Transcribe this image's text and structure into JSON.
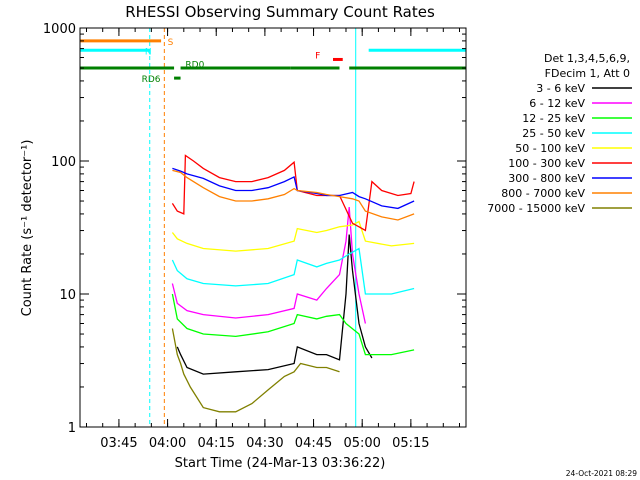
{
  "chart_data": {
    "type": "line",
    "title": "RHESSI Observing Summary Count Rates",
    "ylabel": "Count Rate (s⁻¹ detector⁻¹)",
    "xlabel": "Start Time (24-Mar-13 03:36:22)",
    "yscale": "log",
    "ylim": [
      1,
      1000
    ],
    "xlim_minutes": [
      -18,
      101
    ],
    "time_origin": "03:54",
    "yticks": [
      {
        "value": 1,
        "label": "1"
      },
      {
        "value": 10,
        "label": "10"
      },
      {
        "value": 100,
        "label": "100"
      },
      {
        "value": 1000,
        "label": "1000"
      }
    ],
    "xticks": [
      {
        "t": -6,
        "label": "03:45"
      },
      {
        "t": 9,
        "label": "04:00"
      },
      {
        "t": 24,
        "label": "04:15"
      },
      {
        "t": 39,
        "label": "04:30"
      },
      {
        "t": 54,
        "label": "04:45"
      },
      {
        "t": 69,
        "label": "05:00"
      },
      {
        "t": 84,
        "label": "05:15"
      }
    ],
    "legend_header": [
      "Det 1,3,4,5,6,9,",
      "FDecim 1, Att 0"
    ],
    "legend_position": "right",
    "series": [
      {
        "name": "3 - 6 keV",
        "color": "#000000",
        "values": [
          [
            12,
            4
          ],
          [
            13,
            3.5
          ],
          [
            15,
            2.8
          ],
          [
            20,
            2.5
          ],
          [
            30,
            2.6
          ],
          [
            40,
            2.7
          ],
          [
            48,
            3
          ],
          [
            49,
            4
          ],
          [
            55,
            3.5
          ],
          [
            58,
            3.5
          ],
          [
            62,
            3.2
          ],
          [
            64,
            10
          ],
          [
            65,
            28
          ],
          [
            66,
            15
          ],
          [
            68,
            6
          ],
          [
            70,
            4
          ],
          [
            72,
            3.3
          ]
        ]
      },
      {
        "name": "6 - 12 keV",
        "color": "#ff00ff",
        "values": [
          [
            10.5,
            12
          ],
          [
            12,
            8.5
          ],
          [
            15,
            7.5
          ],
          [
            20,
            7
          ],
          [
            30,
            6.6
          ],
          [
            40,
            7
          ],
          [
            48,
            7.8
          ],
          [
            49,
            10
          ],
          [
            55,
            9
          ],
          [
            58,
            11
          ],
          [
            62,
            14
          ],
          [
            64,
            25
          ],
          [
            65,
            45
          ],
          [
            66,
            20
          ],
          [
            68,
            10
          ],
          [
            70,
            6
          ]
        ]
      },
      {
        "name": "12 - 25 keV",
        "color": "#00ff00",
        "values": [
          [
            10.5,
            10
          ],
          [
            12,
            6.5
          ],
          [
            15,
            5.5
          ],
          [
            20,
            5
          ],
          [
            30,
            4.8
          ],
          [
            40,
            5.2
          ],
          [
            48,
            6
          ],
          [
            49,
            7
          ],
          [
            55,
            6.5
          ],
          [
            58,
            6.8
          ],
          [
            62,
            7
          ],
          [
            64,
            6
          ],
          [
            68,
            5
          ],
          [
            70,
            3.5
          ],
          [
            78,
            3.5
          ],
          [
            85,
            3.8
          ]
        ]
      },
      {
        "name": "25 - 50 keV",
        "color": "#00ffff",
        "values": [
          [
            10.5,
            18
          ],
          [
            12,
            15
          ],
          [
            15,
            13
          ],
          [
            20,
            12
          ],
          [
            30,
            11.5
          ],
          [
            40,
            12
          ],
          [
            48,
            14
          ],
          [
            49,
            18
          ],
          [
            55,
            16
          ],
          [
            58,
            17
          ],
          [
            62,
            18
          ],
          [
            65,
            20
          ],
          [
            68,
            22
          ],
          [
            70,
            10
          ],
          [
            78,
            10
          ],
          [
            85,
            11
          ]
        ]
      },
      {
        "name": "50 - 100 keV",
        "color": "#ffff00",
        "values": [
          [
            10.5,
            29
          ],
          [
            12,
            26
          ],
          [
            15,
            24
          ],
          [
            20,
            22
          ],
          [
            30,
            21
          ],
          [
            40,
            22
          ],
          [
            48,
            25
          ],
          [
            49,
            31
          ],
          [
            55,
            29
          ],
          [
            58,
            30
          ],
          [
            62,
            32
          ],
          [
            66,
            33
          ],
          [
            68,
            35
          ],
          [
            70,
            25
          ],
          [
            78,
            23
          ],
          [
            85,
            24
          ]
        ]
      },
      {
        "name": "100 - 300 keV",
        "color": "#ff0000",
        "values": [
          [
            10.5,
            48
          ],
          [
            12,
            42
          ],
          [
            14,
            40
          ],
          [
            14.5,
            110
          ],
          [
            17,
            100
          ],
          [
            20,
            88
          ],
          [
            25,
            75
          ],
          [
            30,
            70
          ],
          [
            35,
            70
          ],
          [
            40,
            75
          ],
          [
            45,
            85
          ],
          [
            48,
            98
          ],
          [
            49,
            60
          ],
          [
            55,
            55
          ],
          [
            58,
            55
          ],
          [
            62,
            55
          ],
          [
            66,
            34
          ],
          [
            68,
            32
          ],
          [
            70,
            30
          ],
          [
            72,
            70
          ],
          [
            75,
            60
          ],
          [
            80,
            55
          ],
          [
            84,
            57
          ],
          [
            85,
            70
          ]
        ]
      },
      {
        "name": "300 - 800 keV",
        "color": "#0000ff",
        "values": [
          [
            10.5,
            88
          ],
          [
            13,
            84
          ],
          [
            15,
            80
          ],
          [
            20,
            74
          ],
          [
            25,
            65
          ],
          [
            30,
            60
          ],
          [
            35,
            60
          ],
          [
            40,
            63
          ],
          [
            45,
            70
          ],
          [
            48,
            76
          ],
          [
            49,
            60
          ],
          [
            55,
            57
          ],
          [
            58,
            55
          ],
          [
            62,
            55
          ],
          [
            66,
            58
          ],
          [
            68,
            54
          ],
          [
            70,
            52
          ],
          [
            75,
            46
          ],
          [
            80,
            44
          ],
          [
            85,
            50
          ]
        ]
      },
      {
        "name": "800 - 7000 keV",
        "color": "#ff8000",
        "values": [
          [
            10.5,
            85
          ],
          [
            13,
            82
          ],
          [
            15,
            75
          ],
          [
            20,
            63
          ],
          [
            25,
            54
          ],
          [
            30,
            50
          ],
          [
            35,
            50
          ],
          [
            40,
            52
          ],
          [
            45,
            56
          ],
          [
            48,
            62
          ],
          [
            49,
            60
          ],
          [
            55,
            58
          ],
          [
            58,
            56
          ],
          [
            62,
            54
          ],
          [
            66,
            52
          ],
          [
            68,
            50
          ],
          [
            70,
            42
          ],
          [
            75,
            38
          ],
          [
            80,
            36
          ],
          [
            85,
            40
          ]
        ]
      },
      {
        "name": "7000 - 15000 keV",
        "color": "#808000",
        "values": [
          [
            10.5,
            5.5
          ],
          [
            12,
            3.5
          ],
          [
            13,
            3
          ],
          [
            14,
            2.5
          ],
          [
            16,
            2
          ],
          [
            20,
            1.4
          ],
          [
            25,
            1.3
          ],
          [
            30,
            1.3
          ],
          [
            35,
            1.5
          ],
          [
            40,
            1.9
          ],
          [
            45,
            2.4
          ],
          [
            48,
            2.6
          ],
          [
            50,
            3
          ],
          [
            55,
            2.8
          ],
          [
            58,
            2.8
          ],
          [
            62,
            2.6
          ]
        ]
      }
    ],
    "status_bars": [
      {
        "label": "S",
        "color": "#ff8000",
        "y": 800,
        "segments": [
          [
            -18,
            7
          ]
        ],
        "labelT": 9,
        "labelY": 800
      },
      {
        "label": "N",
        "color": "#00ffff",
        "y": 680,
        "segments": [
          [
            -18,
            3.5
          ],
          [
            71,
            101
          ]
        ],
        "labelT": 2,
        "labelY": 680
      },
      {
        "label": "RD0",
        "color": "#008000",
        "y": 500,
        "segments": [
          [
            -18,
            11
          ],
          [
            13,
            47
          ],
          [
            47,
            62
          ],
          [
            65,
            101
          ]
        ],
        "labelT": 14.5,
        "labelY": 540
      },
      {
        "label": "RD6",
        "color": "#008000",
        "y": 420,
        "segments": [
          [
            11,
            13
          ]
        ],
        "labelT": 1,
        "labelY": 420
      },
      {
        "label": "F",
        "color": "#ff0000",
        "y": 580,
        "segments": [
          [
            60,
            63
          ]
        ],
        "labelT": 54.5,
        "labelY": 630
      }
    ],
    "vlines": [
      {
        "t": -18,
        "color": "#00ffff",
        "style": "solid"
      },
      {
        "t": 3.5,
        "color": "#00ffff",
        "style": "dashed"
      },
      {
        "t": 8,
        "color": "#ff8000",
        "style": "dashed"
      },
      {
        "t": 67,
        "color": "#00ffff",
        "style": "solid"
      },
      {
        "t": 101,
        "color": "#00ffff",
        "style": "dashed"
      }
    ]
  },
  "footer": {
    "date": "24-Oct-2021 08:29"
  }
}
